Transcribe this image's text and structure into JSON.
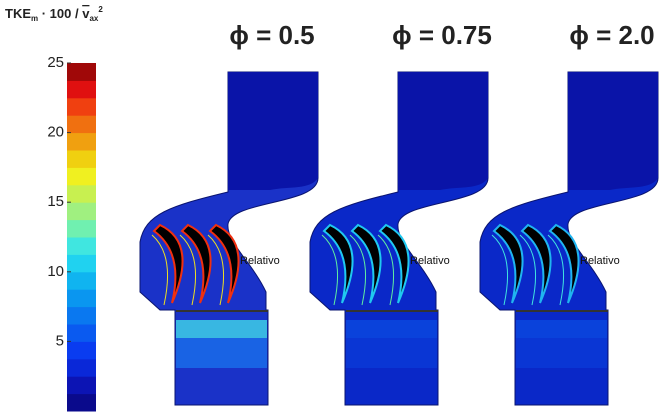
{
  "colorbar": {
    "label": {
      "main": "TKE",
      "sub1": "m",
      "mid": " · 100 / ",
      "var": "v",
      "sub2": "ax",
      "sup": "2"
    },
    "lim": [
      0,
      25
    ],
    "ticks": [
      5,
      10,
      15,
      20,
      25
    ],
    "colors": [
      "#0a0a8c",
      "#0c14b4",
      "#0a28d8",
      "#0a3cf0",
      "#0a5af0",
      "#0a78f0",
      "#0a96f0",
      "#10b4f0",
      "#20d2f0",
      "#40e6e0",
      "#70f0b0",
      "#a0f080",
      "#c8f050",
      "#f0f020",
      "#f0d010",
      "#f0a010",
      "#f07010",
      "#f04010",
      "#e01010",
      "#a00808"
    ]
  },
  "panels": [
    {
      "title": "ϕ = 0.5",
      "annotation": "Relativo"
    },
    {
      "title": "ϕ = 0.75",
      "annotation": "Relativo"
    },
    {
      "title": "ϕ = 2.0",
      "annotation": "Relativo"
    }
  ]
}
